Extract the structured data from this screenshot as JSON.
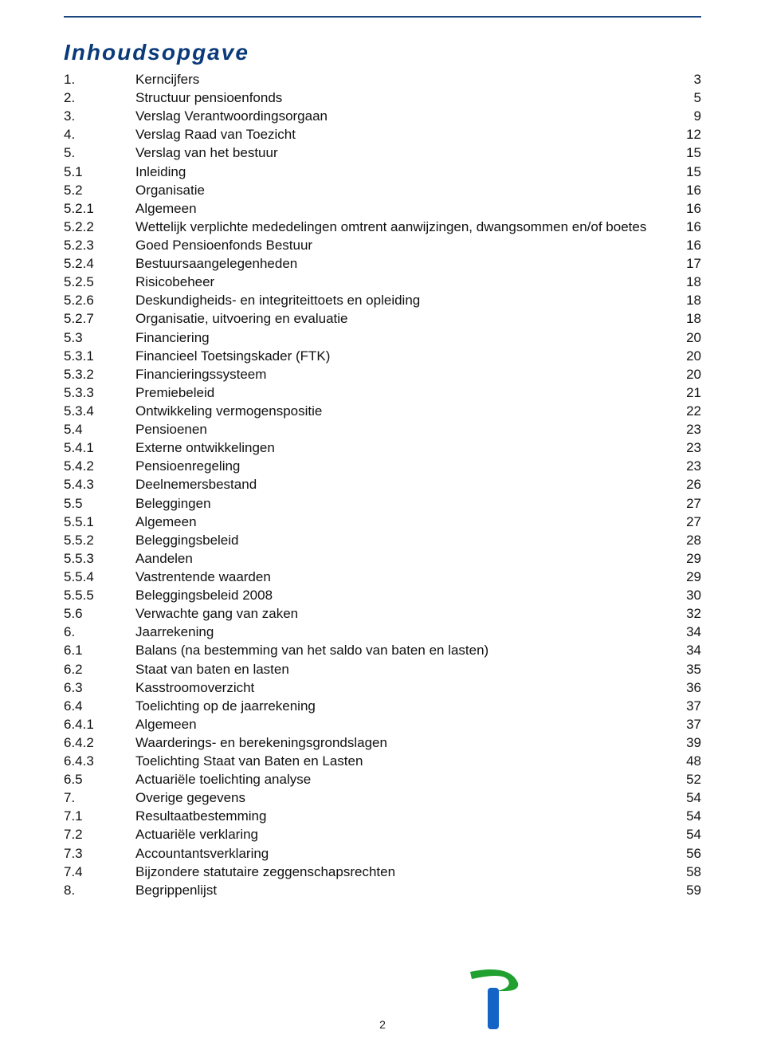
{
  "title": "Inhoudsopgave",
  "page_number": "2",
  "colors": {
    "rule": "#1a4680",
    "title": "#0a3a7a",
    "text": "#111111",
    "logo_green": "#1fa02f",
    "logo_blue": "#1464c8"
  },
  "toc": [
    {
      "num": "1.",
      "label": "Kerncijfers",
      "page": "3"
    },
    {
      "num": "2.",
      "label": "Structuur pensioenfonds",
      "page": "5"
    },
    {
      "num": "3.",
      "label": "Verslag Verantwoordingsorgaan",
      "page": "9"
    },
    {
      "num": "4.",
      "label": "Verslag Raad van Toezicht",
      "page": "12"
    },
    {
      "num": "5.",
      "label": "Verslag van het bestuur",
      "page": "15"
    },
    {
      "num": "5.1",
      "label": "Inleiding",
      "page": "15"
    },
    {
      "num": "5.2",
      "label": "Organisatie",
      "page": "16"
    },
    {
      "num": "5.2.1",
      "label": "Algemeen",
      "page": "16"
    },
    {
      "num": "5.2.2",
      "label": "Wettelijk verplichte mededelingen omtrent aanwijzingen, dwangsommen en/of boetes",
      "page": "16"
    },
    {
      "num": "5.2.3",
      "label": "Goed Pensioenfonds Bestuur",
      "page": "16"
    },
    {
      "num": "5.2.4",
      "label": "Bestuursaangelegenheden",
      "page": "17"
    },
    {
      "num": "5.2.5",
      "label": "Risicobeheer",
      "page": "18"
    },
    {
      "num": "5.2.6",
      "label": "Deskundigheids- en integriteittoets en opleiding",
      "page": "18"
    },
    {
      "num": "5.2.7",
      "label": "Organisatie, uitvoering en evaluatie",
      "page": "18"
    },
    {
      "num": "5.3",
      "label": "Financiering",
      "page": "20"
    },
    {
      "num": "5.3.1",
      "label": "Financieel Toetsingskader (FTK)",
      "page": "20"
    },
    {
      "num": "5.3.2",
      "label": "Financieringssysteem",
      "page": "20"
    },
    {
      "num": "5.3.3",
      "label": "Premiebeleid",
      "page": "21"
    },
    {
      "num": "5.3.4",
      "label": "Ontwikkeling vermogenspositie",
      "page": "22"
    },
    {
      "num": "5.4",
      "label": "Pensioenen",
      "page": "23"
    },
    {
      "num": "5.4.1",
      "label": "Externe ontwikkelingen",
      "page": "23"
    },
    {
      "num": "5.4.2",
      "label": "Pensioenregeling",
      "page": "23"
    },
    {
      "num": "5.4.3",
      "label": "Deelnemersbestand",
      "page": "26"
    },
    {
      "num": "5.5",
      "label": "Beleggingen",
      "page": "27"
    },
    {
      "num": "5.5.1",
      "label": "Algemeen",
      "page": "27"
    },
    {
      "num": "5.5.2",
      "label": "Beleggingsbeleid",
      "page": "28"
    },
    {
      "num": "5.5.3",
      "label": "Aandelen",
      "page": "29"
    },
    {
      "num": "5.5.4",
      "label": "Vastrentende waarden",
      "page": "29"
    },
    {
      "num": "5.5.5",
      "label": "Beleggingsbeleid 2008",
      "page": "30"
    },
    {
      "num": "5.6",
      "label": "Verwachte gang van zaken",
      "page": "32"
    },
    {
      "num": "6.",
      "label": "Jaarrekening",
      "page": "34"
    },
    {
      "num": "6.1",
      "label": "Balans (na bestemming van het saldo van baten en lasten)",
      "page": "34"
    },
    {
      "num": "6.2",
      "label": "Staat van baten en lasten",
      "page": "35"
    },
    {
      "num": "6.3",
      "label": "Kasstroomoverzicht",
      "page": "36"
    },
    {
      "num": "6.4",
      "label": "Toelichting op de jaarrekening",
      "page": "37"
    },
    {
      "num": "6.4.1",
      "label": "Algemeen",
      "page": "37"
    },
    {
      "num": "6.4.2",
      "label": "Waarderings- en berekeningsgrondslagen",
      "page": "39"
    },
    {
      "num": "6.4.3",
      "label": "Toelichting Staat van Baten en Lasten",
      "page": "48"
    },
    {
      "num": "6.5",
      "label": "Actuariële toelichting analyse",
      "page": "52"
    },
    {
      "num": "7.",
      "label": "Overige gegevens",
      "page": "54"
    },
    {
      "num": "7.1",
      "label": "Resultaatbestemming",
      "page": "54"
    },
    {
      "num": "7.2",
      "label": "Actuariële verklaring",
      "page": "54"
    },
    {
      "num": "7.3",
      "label": "Accountantsverklaring",
      "page": "56"
    },
    {
      "num": "7.4",
      "label": "Bijzondere statutaire zeggenschapsrechten",
      "page": "58"
    },
    {
      "num": "8.",
      "label": "Begrippenlijst",
      "page": "59"
    }
  ]
}
